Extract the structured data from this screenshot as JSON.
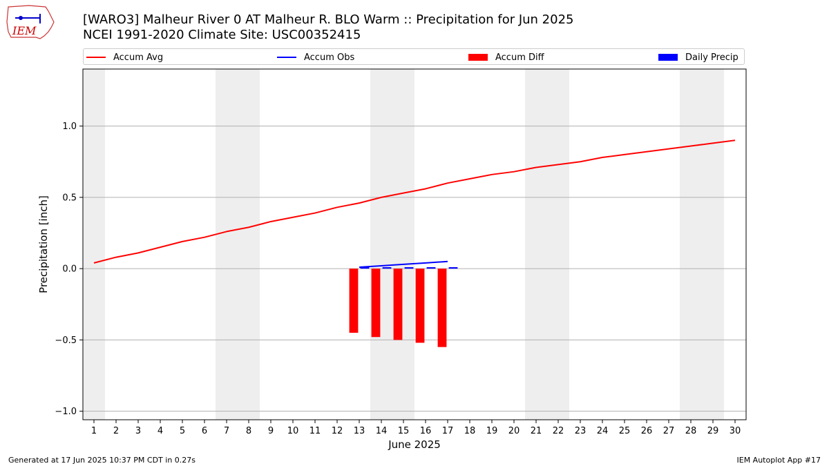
{
  "logo": {
    "text": "IEM"
  },
  "header": {
    "title_line1": "[WARO3] Malheur River 0 AT Malheur R. BLO Warm :: Precipitation for Jun 2025",
    "title_line2": "NCEI 1991-2020 Climate Site: USC00352415"
  },
  "legend": {
    "items": [
      {
        "label": "Accum Avg",
        "kind": "line",
        "color": "#ff0000"
      },
      {
        "label": "Accum Obs",
        "kind": "line",
        "color": "#0000ff"
      },
      {
        "label": "Accum Diff",
        "kind": "patch",
        "color": "#ff0000"
      },
      {
        "label": "Daily Precip",
        "kind": "patch",
        "color": "#0000ff"
      }
    ]
  },
  "footer": {
    "left": "Generated at 17 Jun 2025 10:37 PM CDT in 0.27s",
    "right": "IEM Autoplot App #17"
  },
  "chart_data": {
    "type": "line",
    "xlabel": "June 2025",
    "ylabel": "Precipitation [inch]",
    "xlim": [
      0.5,
      30.5
    ],
    "ylim": [
      -1.06,
      1.4
    ],
    "x_ticks": [
      1,
      2,
      3,
      4,
      5,
      6,
      7,
      8,
      9,
      10,
      11,
      12,
      13,
      14,
      15,
      16,
      17,
      18,
      19,
      20,
      21,
      22,
      23,
      24,
      25,
      26,
      27,
      28,
      29,
      30
    ],
    "y_ticks": [
      -1.0,
      -0.5,
      0.0,
      0.5,
      1.0
    ],
    "y_tick_labels": [
      "−1.0",
      "−0.5",
      "0.0",
      "0.5",
      "1.0"
    ],
    "grid": "horizontal",
    "legend_position": "top",
    "weekend_shading": [
      [
        0.5,
        1.5
      ],
      [
        6.5,
        8.5
      ],
      [
        13.5,
        15.5
      ],
      [
        20.5,
        22.5
      ],
      [
        27.5,
        29.5
      ]
    ],
    "shading_color": "#eeeeee",
    "series": [
      {
        "name": "Accum Avg",
        "type": "line",
        "color": "#ff0000",
        "x": [
          1,
          2,
          3,
          4,
          5,
          6,
          7,
          8,
          9,
          10,
          11,
          12,
          13,
          14,
          15,
          16,
          17,
          18,
          19,
          20,
          21,
          22,
          23,
          24,
          25,
          26,
          27,
          28,
          29,
          30
        ],
        "values": [
          0.04,
          0.08,
          0.11,
          0.15,
          0.19,
          0.22,
          0.26,
          0.29,
          0.33,
          0.36,
          0.39,
          0.43,
          0.46,
          0.5,
          0.53,
          0.56,
          0.6,
          0.63,
          0.66,
          0.68,
          0.71,
          0.73,
          0.75,
          0.78,
          0.8,
          0.82,
          0.84,
          0.86,
          0.88,
          0.9
        ]
      },
      {
        "name": "Accum Obs",
        "type": "line",
        "color": "#0000ff",
        "x": [
          13,
          14,
          15,
          16,
          17
        ],
        "values": [
          0.01,
          0.02,
          0.03,
          0.04,
          0.05
        ]
      },
      {
        "name": "Accum Diff",
        "type": "bar",
        "color": "#ff0000",
        "x": [
          13,
          14,
          15,
          16,
          17
        ],
        "values": [
          -0.45,
          -0.48,
          -0.5,
          -0.52,
          -0.55
        ]
      },
      {
        "name": "Daily Precip",
        "type": "bar",
        "color": "#0000ff",
        "x": [
          13,
          14,
          15,
          16,
          17
        ],
        "values": [
          0.01,
          0.01,
          0.01,
          0.01,
          0.01
        ]
      }
    ]
  }
}
